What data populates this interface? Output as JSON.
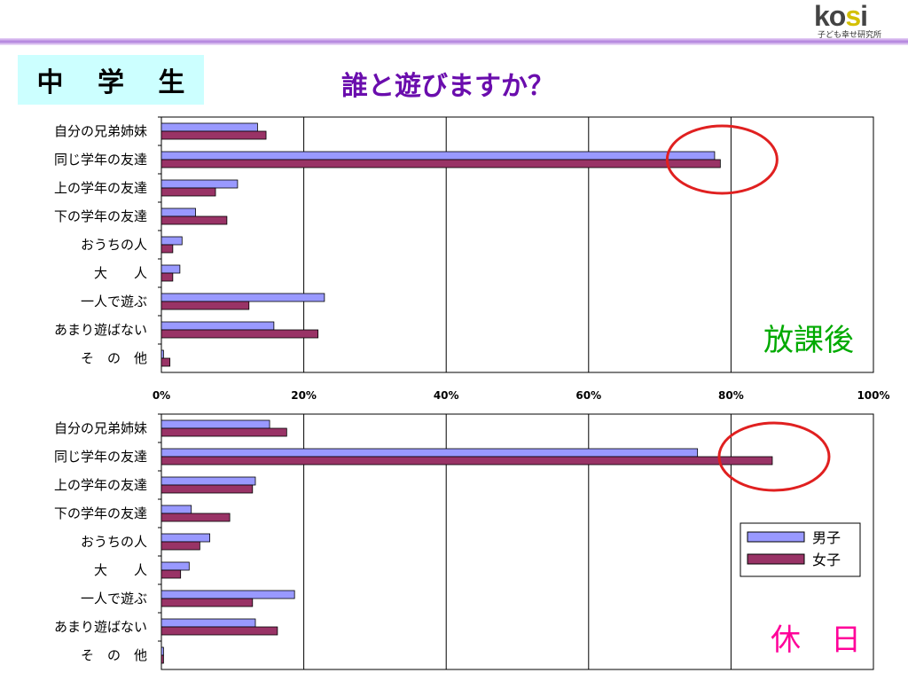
{
  "header": {
    "title": "中 学 生",
    "question": "誰と遊びますか？",
    "logo_brand": "kosi",
    "logo_sub": "子ども幸せ研究所"
  },
  "colors": {
    "boys": "#9999ff",
    "girls": "#993366",
    "title_bg": "#ccffff",
    "question": "#6a0dad",
    "after_school_tag": "#00aa00",
    "holiday_tag": "#ff0099",
    "highlight_circle": "#e02020",
    "header_line": "#b07fdc"
  },
  "icons": {
    "highlight": "red-ellipse-highlight"
  },
  "chart_data": [
    {
      "type": "bar",
      "orientation": "horizontal",
      "tag": "放課後",
      "categories": [
        "自分の兄弟姉妹",
        "同じ学年の友達",
        "上の学年の友達",
        "下の学年の友達",
        "おうちの人",
        "大　　人",
        "一人で遊ぶ",
        "あまり遊ばない",
        "そ　の　他"
      ],
      "series": [
        {
          "name": "男子",
          "values": [
            13.5,
            77.7,
            10.7,
            4.8,
            2.9,
            2.6,
            22.9,
            15.8,
            0.3
          ]
        },
        {
          "name": "女子",
          "values": [
            14.7,
            78.5,
            7.6,
            9.2,
            1.6,
            1.6,
            12.3,
            22.0,
            1.2
          ]
        }
      ],
      "xlim": [
        0,
        100
      ],
      "xticks": [
        "0%",
        "20%",
        "40%",
        "60%",
        "80%",
        "100%"
      ],
      "highlight_category": "同じ学年の友達",
      "grid": true
    },
    {
      "type": "bar",
      "orientation": "horizontal",
      "tag": "休　日",
      "categories": [
        "自分の兄弟姉妹",
        "同じ学年の友達",
        "上の学年の友達",
        "下の学年の友達",
        "おうちの人",
        "大　　人",
        "一人で遊ぶ",
        "あまり遊ばない",
        "そ　の　他"
      ],
      "series": [
        {
          "name": "男子",
          "values": [
            15.2,
            75.3,
            13.2,
            4.2,
            6.8,
            3.9,
            18.7,
            13.2,
            0.3
          ]
        },
        {
          "name": "女子",
          "values": [
            17.6,
            85.8,
            12.8,
            9.6,
            5.4,
            2.7,
            12.8,
            16.3,
            0.3
          ]
        }
      ],
      "xlim": [
        0,
        100
      ],
      "highlight_category": "同じ学年の友達",
      "legend": {
        "placement": "right",
        "entries": [
          "男子",
          "女子"
        ]
      },
      "grid": true
    }
  ]
}
